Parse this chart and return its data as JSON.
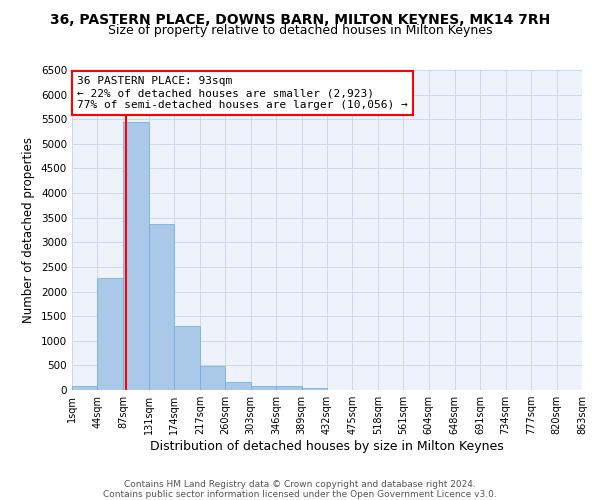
{
  "title_line1": "36, PASTERN PLACE, DOWNS BARN, MILTON KEYNES, MK14 7RH",
  "title_line2": "Size of property relative to detached houses in Milton Keynes",
  "xlabel": "Distribution of detached houses by size in Milton Keynes",
  "ylabel": "Number of detached properties",
  "footer_line1": "Contains HM Land Registry data © Crown copyright and database right 2024.",
  "footer_line2": "Contains public sector information licensed under the Open Government Licence v3.0.",
  "annotation_title": "36 PASTERN PLACE: 93sqm",
  "annotation_line1": "← 22% of detached houses are smaller (2,923)",
  "annotation_line2": "77% of semi-detached houses are larger (10,056) →",
  "property_size": 93,
  "bar_color": "#aac8e8",
  "bar_edge_color": "#6aabdb",
  "vline_color": "red",
  "annotation_box_color": "red",
  "grid_color": "#ccd8ec",
  "bin_edges": [
    1,
    44,
    87,
    131,
    174,
    217,
    260,
    303,
    346,
    389,
    432,
    475,
    518,
    561,
    604,
    648,
    691,
    734,
    777,
    820,
    863
  ],
  "bar_heights": [
    75,
    2280,
    5450,
    3380,
    1310,
    480,
    160,
    80,
    80,
    35,
    10,
    5,
    3,
    2,
    1,
    1,
    0,
    0,
    0,
    0
  ],
  "ylim": [
    0,
    6500
  ],
  "xlim": [
    1,
    863
  ],
  "tick_labels": [
    "1sqm",
    "44sqm",
    "87sqm",
    "131sqm",
    "174sqm",
    "217sqm",
    "260sqm",
    "303sqm",
    "346sqm",
    "389sqm",
    "432sqm",
    "475sqm",
    "518sqm",
    "561sqm",
    "604sqm",
    "648sqm",
    "691sqm",
    "734sqm",
    "777sqm",
    "820sqm",
    "863sqm"
  ],
  "background_color": "#eef2fa",
  "title_fontsize": 10,
  "subtitle_fontsize": 9,
  "axis_label_fontsize": 8.5,
  "tick_fontsize": 7,
  "annotation_fontsize": 8,
  "footer_fontsize": 6.5,
  "ytick_values": [
    0,
    500,
    1000,
    1500,
    2000,
    2500,
    3000,
    3500,
    4000,
    4500,
    5000,
    5500,
    6000,
    6500
  ]
}
